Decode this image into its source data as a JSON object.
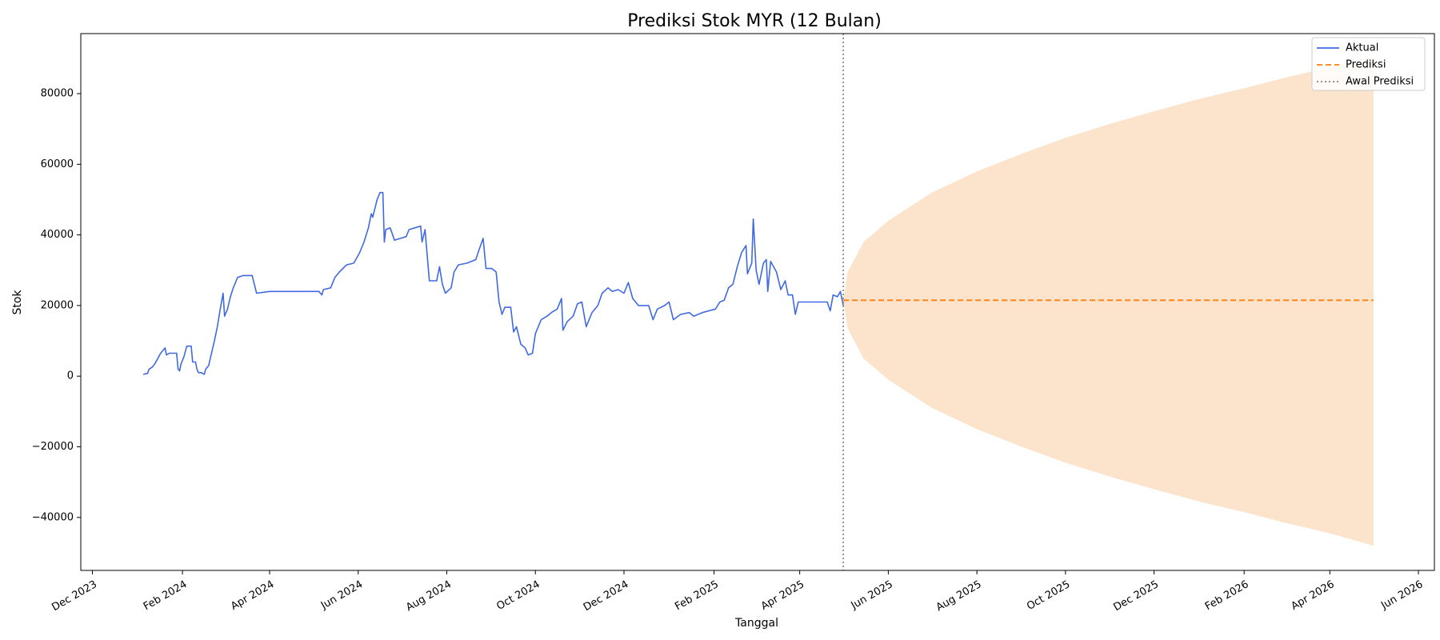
{
  "chart_data": {
    "type": "line",
    "title": "Prediksi Stok MYR (12 Bulan)",
    "xlabel": "Tanggal",
    "ylabel": "Stok",
    "x_axis_type": "date",
    "xlim": [
      "2023-11-23",
      "2026-06-12"
    ],
    "ylim": [
      -55000,
      97000
    ],
    "x_ticks": [
      {
        "date": "2023-12-01",
        "label": "Dec 2023"
      },
      {
        "date": "2024-02-01",
        "label": "Feb 2024"
      },
      {
        "date": "2024-04-01",
        "label": "Apr 2024"
      },
      {
        "date": "2024-06-01",
        "label": "Jun 2024"
      },
      {
        "date": "2024-08-01",
        "label": "Aug 2024"
      },
      {
        "date": "2024-10-01",
        "label": "Oct 2024"
      },
      {
        "date": "2024-12-01",
        "label": "Dec 2024"
      },
      {
        "date": "2025-02-01",
        "label": "Feb 2025"
      },
      {
        "date": "2025-04-01",
        "label": "Apr 2025"
      },
      {
        "date": "2025-06-01",
        "label": "Jun 2025"
      },
      {
        "date": "2025-08-01",
        "label": "Aug 2025"
      },
      {
        "date": "2025-10-01",
        "label": "Oct 2025"
      },
      {
        "date": "2025-12-01",
        "label": "Dec 2025"
      },
      {
        "date": "2026-02-01",
        "label": "Feb 2026"
      },
      {
        "date": "2026-04-01",
        "label": "Apr 2026"
      },
      {
        "date": "2026-06-01",
        "label": "Jun 2026"
      }
    ],
    "y_ticks": [
      {
        "value": 80000,
        "label": "80000"
      },
      {
        "value": 60000,
        "label": "60000"
      },
      {
        "value": 40000,
        "label": "40000"
      },
      {
        "value": 20000,
        "label": "20000"
      },
      {
        "value": 0,
        "label": "0"
      },
      {
        "value": -20000,
        "label": "−20000"
      },
      {
        "value": -40000,
        "label": "−40000"
      }
    ],
    "grid": false,
    "legend_position": "top-right",
    "forecast_start": "2025-05-01",
    "series": [
      {
        "name": "Aktual",
        "style": "solid",
        "color": "#4169e1",
        "points": [
          [
            "2024-01-05",
            500
          ],
          [
            "2024-01-08",
            800
          ],
          [
            "2024-01-09",
            2000
          ],
          [
            "2024-01-11",
            2500
          ],
          [
            "2024-01-13",
            3500
          ],
          [
            "2024-01-15",
            5000
          ],
          [
            "2024-01-17",
            6500
          ],
          [
            "2024-01-19",
            7500
          ],
          [
            "2024-01-20",
            8000
          ],
          [
            "2024-01-21",
            6000
          ],
          [
            "2024-01-23",
            6500
          ],
          [
            "2024-01-25",
            6500
          ],
          [
            "2024-01-28",
            6500
          ],
          [
            "2024-01-29",
            2000
          ],
          [
            "2024-01-30",
            1500
          ],
          [
            "2024-01-31",
            3500
          ],
          [
            "2024-02-02",
            5500
          ],
          [
            "2024-02-04",
            8500
          ],
          [
            "2024-02-07",
            8500
          ],
          [
            "2024-02-08",
            4000
          ],
          [
            "2024-02-10",
            4000
          ],
          [
            "2024-02-11",
            2000
          ],
          [
            "2024-02-12",
            1000
          ],
          [
            "2024-02-14",
            1000
          ],
          [
            "2024-02-16",
            500
          ],
          [
            "2024-02-17",
            2000
          ],
          [
            "2024-02-19",
            3000
          ],
          [
            "2024-02-21",
            6500
          ],
          [
            "2024-02-23",
            10000
          ],
          [
            "2024-02-25",
            14000
          ],
          [
            "2024-02-27",
            19000
          ],
          [
            "2024-02-29",
            23500
          ],
          [
            "2024-03-01",
            17000
          ],
          [
            "2024-03-03",
            19000
          ],
          [
            "2024-03-05",
            22500
          ],
          [
            "2024-03-07",
            25000
          ],
          [
            "2024-03-10",
            28000
          ],
          [
            "2024-03-14",
            28500
          ],
          [
            "2024-03-20",
            28500
          ],
          [
            "2024-03-23",
            23500
          ],
          [
            "2024-04-01",
            24000
          ],
          [
            "2024-04-15",
            24000
          ],
          [
            "2024-05-01",
            24000
          ],
          [
            "2024-05-05",
            24000
          ],
          [
            "2024-05-07",
            23000
          ],
          [
            "2024-05-08",
            24500
          ],
          [
            "2024-05-13",
            25000
          ],
          [
            "2024-05-16",
            28000
          ],
          [
            "2024-05-19",
            29500
          ],
          [
            "2024-05-24",
            31500
          ],
          [
            "2024-05-29",
            32000
          ],
          [
            "2024-06-02",
            35000
          ],
          [
            "2024-06-05",
            38000
          ],
          [
            "2024-06-08",
            42000
          ],
          [
            "2024-06-10",
            46000
          ],
          [
            "2024-06-11",
            45000
          ],
          [
            "2024-06-14",
            50000
          ],
          [
            "2024-06-16",
            52000
          ],
          [
            "2024-06-18",
            52000
          ],
          [
            "2024-06-19",
            38000
          ],
          [
            "2024-06-20",
            41500
          ],
          [
            "2024-06-23",
            42000
          ],
          [
            "2024-06-26",
            38500
          ],
          [
            "2024-06-30",
            39000
          ],
          [
            "2024-07-04",
            39500
          ],
          [
            "2024-07-06",
            41500
          ],
          [
            "2024-07-10",
            42000
          ],
          [
            "2024-07-14",
            42500
          ],
          [
            "2024-07-15",
            38000
          ],
          [
            "2024-07-17",
            41500
          ],
          [
            "2024-07-20",
            27000
          ],
          [
            "2024-07-25",
            27000
          ],
          [
            "2024-07-27",
            31000
          ],
          [
            "2024-07-29",
            26000
          ],
          [
            "2024-07-31",
            23500
          ],
          [
            "2024-08-04",
            25000
          ],
          [
            "2024-08-06",
            29500
          ],
          [
            "2024-08-09",
            31500
          ],
          [
            "2024-08-15",
            32000
          ],
          [
            "2024-08-21",
            33000
          ],
          [
            "2024-08-23",
            35500
          ],
          [
            "2024-08-26",
            39000
          ],
          [
            "2024-08-28",
            30500
          ],
          [
            "2024-09-01",
            30500
          ],
          [
            "2024-09-04",
            29500
          ],
          [
            "2024-09-06",
            21000
          ],
          [
            "2024-09-08",
            17500
          ],
          [
            "2024-09-10",
            19500
          ],
          [
            "2024-09-14",
            19500
          ],
          [
            "2024-09-16",
            12500
          ],
          [
            "2024-09-18",
            14000
          ],
          [
            "2024-09-21",
            9000
          ],
          [
            "2024-09-24",
            8000
          ],
          [
            "2024-09-26",
            6000
          ],
          [
            "2024-09-29",
            6500
          ],
          [
            "2024-10-01",
            12000
          ],
          [
            "2024-10-05",
            16000
          ],
          [
            "2024-10-09",
            17000
          ],
          [
            "2024-10-12",
            18000
          ],
          [
            "2024-10-16",
            19000
          ],
          [
            "2024-10-19",
            22000
          ],
          [
            "2024-10-20",
            13000
          ],
          [
            "2024-10-23",
            15500
          ],
          [
            "2024-10-27",
            17000
          ],
          [
            "2024-10-30",
            20500
          ],
          [
            "2024-11-02",
            21000
          ],
          [
            "2024-11-05",
            14000
          ],
          [
            "2024-11-09",
            18000
          ],
          [
            "2024-11-13",
            20000
          ],
          [
            "2024-11-16",
            23500
          ],
          [
            "2024-11-20",
            25000
          ],
          [
            "2024-11-23",
            24000
          ],
          [
            "2024-11-27",
            24500
          ],
          [
            "2024-12-01",
            23500
          ],
          [
            "2024-12-04",
            26500
          ],
          [
            "2024-12-07",
            22000
          ],
          [
            "2024-12-11",
            20000
          ],
          [
            "2024-12-18",
            20000
          ],
          [
            "2024-12-21",
            16000
          ],
          [
            "2024-12-24",
            19000
          ],
          [
            "2024-12-29",
            20000
          ],
          [
            "2025-01-01",
            21000
          ],
          [
            "2025-01-04",
            16000
          ],
          [
            "2025-01-09",
            17500
          ],
          [
            "2025-01-15",
            18000
          ],
          [
            "2025-01-18",
            17000
          ],
          [
            "2025-01-24",
            18000
          ],
          [
            "2025-02-02",
            19000
          ],
          [
            "2025-02-05",
            21000
          ],
          [
            "2025-02-08",
            21500
          ],
          [
            "2025-02-11",
            25000
          ],
          [
            "2025-02-14",
            26000
          ],
          [
            "2025-02-17",
            31000
          ],
          [
            "2025-02-20",
            35000
          ],
          [
            "2025-02-23",
            37000
          ],
          [
            "2025-02-24",
            29000
          ],
          [
            "2025-02-27",
            32000
          ],
          [
            "2025-02-28",
            44500
          ],
          [
            "2025-03-02",
            30000
          ],
          [
            "2025-03-04",
            26000
          ],
          [
            "2025-03-07",
            32000
          ],
          [
            "2025-03-09",
            33000
          ],
          [
            "2025-03-10",
            24000
          ],
          [
            "2025-03-12",
            32500
          ],
          [
            "2025-03-16",
            29500
          ],
          [
            "2025-03-19",
            24500
          ],
          [
            "2025-03-22",
            27000
          ],
          [
            "2025-03-24",
            23000
          ],
          [
            "2025-03-27",
            23000
          ],
          [
            "2025-03-29",
            17500
          ],
          [
            "2025-03-31",
            21000
          ],
          [
            "2025-04-10",
            21000
          ],
          [
            "2025-04-20",
            21000
          ],
          [
            "2025-04-22",
            18500
          ],
          [
            "2025-04-24",
            23000
          ],
          [
            "2025-04-27",
            22500
          ],
          [
            "2025-04-29",
            24000
          ],
          [
            "2025-05-01",
            20000
          ]
        ]
      },
      {
        "name": "Prediksi",
        "style": "dashed",
        "color": "#ff7f0e",
        "points": [
          [
            "2025-05-01",
            21500
          ],
          [
            "2026-05-01",
            21500
          ]
        ]
      },
      {
        "name": "Awal Prediksi",
        "style": "dotted",
        "color": "#808080"
      }
    ],
    "confidence_band": {
      "color": "#fbe3cc",
      "points": [
        [
          "2025-05-01",
          21500,
          21500
        ],
        [
          "2025-05-04",
          13500,
          29500
        ],
        [
          "2025-05-15",
          5000,
          38000
        ],
        [
          "2025-06-01",
          -1000,
          44000
        ],
        [
          "2025-07-01",
          -9000,
          52000
        ],
        [
          "2025-08-01",
          -15000,
          58000
        ],
        [
          "2025-09-01",
          -20000,
          63000
        ],
        [
          "2025-10-01",
          -24500,
          67500
        ],
        [
          "2025-11-01",
          -28500,
          71500
        ],
        [
          "2025-12-01",
          -32000,
          75000
        ],
        [
          "2026-01-01",
          -35500,
          78500
        ],
        [
          "2026-02-01",
          -38500,
          81500
        ],
        [
          "2026-03-01",
          -41500,
          84500
        ],
        [
          "2026-04-01",
          -44500,
          87500
        ],
        [
          "2026-05-01",
          -48000,
          90500
        ]
      ]
    }
  }
}
